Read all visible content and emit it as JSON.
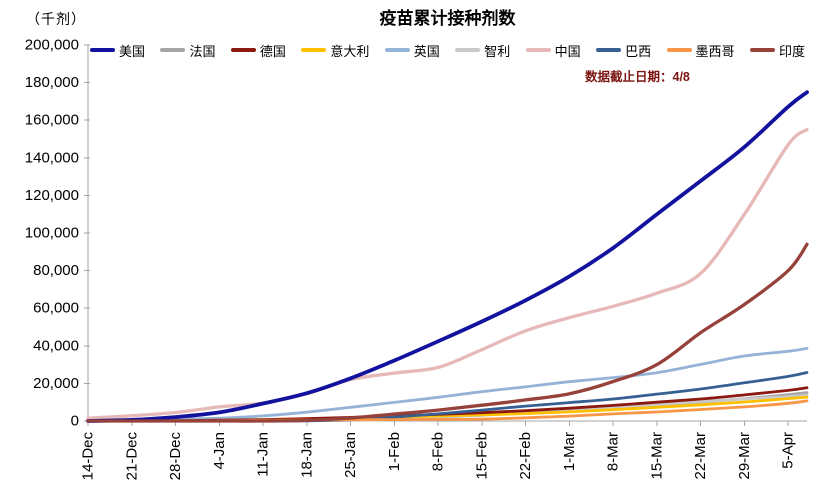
{
  "chart_data": {
    "type": "line",
    "title": "疫苗累计接种剂数",
    "unit_label": "（千剂）",
    "note": "数据截止日期：4/8",
    "xlabel": "",
    "ylabel": "千剂",
    "ylim": [
      0,
      200000
    ],
    "xlim_days": [
      0,
      115
    ],
    "grid": false,
    "legend_position": "top",
    "axis_color": "#A6A6A6",
    "note_color": "#7A1511",
    "text_color": "#000000",
    "ytick_values": [
      0,
      20000,
      40000,
      60000,
      80000,
      100000,
      120000,
      140000,
      160000,
      180000,
      200000
    ],
    "ytick_labels": [
      "0",
      "20,000",
      "40,000",
      "60,000",
      "80,000",
      "100,000",
      "120,000",
      "140,000",
      "160,000",
      "180,000",
      "200,000"
    ],
    "xticks": [
      {
        "day": 0,
        "label": "14-Dec"
      },
      {
        "day": 7,
        "label": "21-Dec"
      },
      {
        "day": 14,
        "label": "28-Dec"
      },
      {
        "day": 21,
        "label": "4-Jan"
      },
      {
        "day": 28,
        "label": "11-Jan"
      },
      {
        "day": 35,
        "label": "18-Jan"
      },
      {
        "day": 42,
        "label": "25-Jan"
      },
      {
        "day": 49,
        "label": "1-Feb"
      },
      {
        "day": 56,
        "label": "8-Feb"
      },
      {
        "day": 63,
        "label": "15-Feb"
      },
      {
        "day": 70,
        "label": "22-Feb"
      },
      {
        "day": 77,
        "label": "1-Mar"
      },
      {
        "day": 84,
        "label": "8-Mar"
      },
      {
        "day": 91,
        "label": "15-Mar"
      },
      {
        "day": 98,
        "label": "22-Mar"
      },
      {
        "day": 105,
        "label": "29-Mar"
      },
      {
        "day": 112,
        "label": "5-Apr"
      }
    ],
    "days": [
      0,
      7,
      14,
      21,
      28,
      35,
      42,
      49,
      56,
      63,
      70,
      77,
      84,
      91,
      98,
      105,
      112,
      115
    ],
    "series": [
      {
        "key": "usa",
        "name": "美国",
        "color": "#12129E",
        "width": 3.8,
        "values": [
          0,
          600,
          2100,
          4600,
          9300,
          14800,
          22700,
          32200,
          42400,
          52900,
          64200,
          76900,
          92100,
          110000,
          127700,
          145800,
          167200,
          174900
        ]
      },
      {
        "key": "france",
        "name": "法国",
        "color": "#A6A6A6",
        "width": 2.8,
        "values": [
          0,
          0,
          0,
          150,
          300,
          800,
          1400,
          1900,
          2500,
          3300,
          4200,
          5300,
          6800,
          8300,
          10000,
          11900,
          14000,
          15100
        ]
      },
      {
        "key": "germany",
        "name": "德国",
        "color": "#8B190F",
        "width": 2.8,
        "values": [
          0,
          0,
          100,
          400,
          750,
          1250,
          1900,
          2700,
          3500,
          4400,
          5500,
          6800,
          8300,
          10000,
          11700,
          13900,
          16300,
          17700
        ]
      },
      {
        "key": "italy",
        "name": "意大利",
        "color": "#FFC000",
        "width": 2.8,
        "values": [
          0,
          0,
          100,
          350,
          750,
          1250,
          1650,
          2150,
          2650,
          3250,
          3950,
          4850,
          6000,
          7300,
          8600,
          10100,
          11900,
          12700
        ]
      },
      {
        "key": "uk",
        "name": "英国",
        "color": "#95B3D7",
        "width": 2.8,
        "values": [
          0,
          700,
          1000,
          1500,
          2700,
          4700,
          7300,
          9900,
          12600,
          15600,
          18200,
          20900,
          23100,
          25700,
          30100,
          34600,
          37100,
          38600
        ]
      },
      {
        "key": "chile",
        "name": "智利",
        "color": "#C9C9C9",
        "width": 2.8,
        "values": [
          0,
          0,
          100,
          150,
          200,
          250,
          350,
          800,
          1900,
          3000,
          4400,
          5900,
          7300,
          8800,
          10300,
          11700,
          13000,
          13700
        ]
      },
      {
        "key": "china",
        "name": "中国",
        "color": "#E6B9B8",
        "width": 3.3,
        "values": [
          1500,
          2800,
          4500,
          7500,
          9500,
          14500,
          22000,
          25500,
          28500,
          38000,
          48000,
          55000,
          61000,
          68000,
          78500,
          110000,
          147000,
          155000
        ]
      },
      {
        "key": "brazil",
        "name": "巴西",
        "color": "#376092",
        "width": 2.8,
        "values": [
          0,
          0,
          0,
          0,
          0,
          100,
          700,
          2100,
          3800,
          5800,
          7900,
          9800,
          11700,
          14300,
          17000,
          20300,
          23700,
          25800
        ]
      },
      {
        "key": "mexico",
        "name": "墨西哥",
        "color": "#F79646",
        "width": 2.8,
        "values": [
          0,
          0,
          50,
          100,
          350,
          550,
          700,
          760,
          850,
          1000,
          1700,
          2600,
          3800,
          4800,
          6100,
          7500,
          9400,
          10700
        ]
      },
      {
        "key": "india",
        "name": "印度",
        "color": "#96413A",
        "width": 3.3,
        "values": [
          0,
          0,
          0,
          0,
          0,
          300,
          1600,
          3700,
          5800,
          8400,
          11200,
          14500,
          21000,
          30000,
          47000,
          62000,
          80000,
          94000
        ]
      }
    ],
    "draw_order": [
      6,
      4,
      1,
      5,
      3,
      2,
      7,
      8,
      0,
      9
    ]
  }
}
